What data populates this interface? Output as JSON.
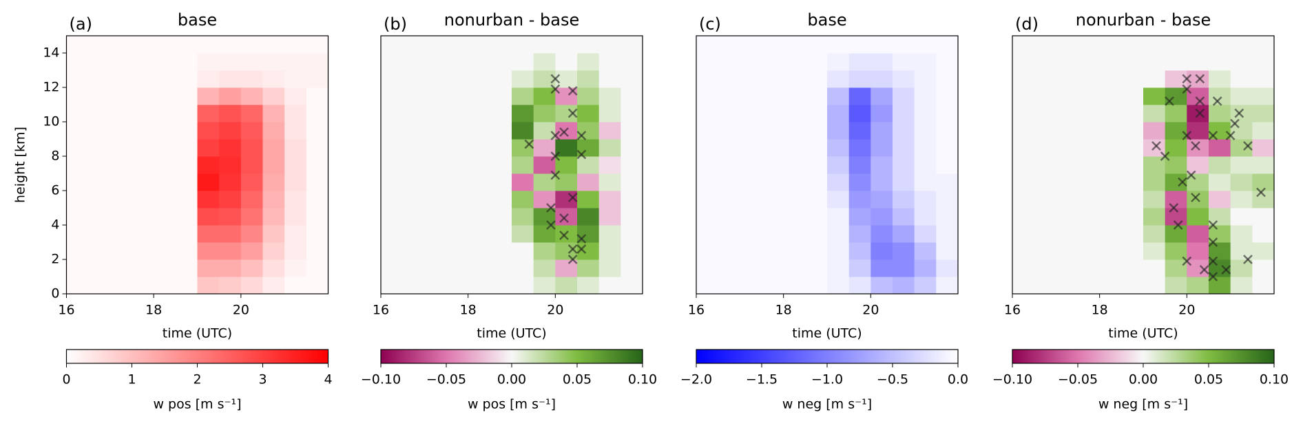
{
  "chart_data": [
    {
      "type": "heatmap",
      "panel_label": "(a)",
      "title": "base",
      "xlabel": "time (UTC)",
      "ylabel": "height [km]",
      "xlim": [
        16,
        22
      ],
      "ylim": [
        0,
        15
      ],
      "xticks": [
        16,
        18,
        20
      ],
      "yticks": [
        0,
        2,
        4,
        6,
        8,
        10,
        12,
        14
      ],
      "xbins": [
        16,
        16.5,
        17,
        17.5,
        18,
        18.5,
        19,
        19.5,
        20,
        20.5,
        21,
        21.5,
        22
      ],
      "ybins": [
        0,
        1,
        2,
        3,
        4,
        5,
        6,
        7,
        8,
        9,
        10,
        11,
        12,
        13,
        14,
        15
      ],
      "z": [
        [
          0.1,
          0.1,
          0.1,
          0.1,
          0.1,
          0.1,
          0.9,
          0.8,
          0.6,
          0.3,
          0.1,
          0.1
        ],
        [
          0.1,
          0.1,
          0.1,
          0.1,
          0.1,
          0.1,
          1.3,
          1.3,
          1.0,
          0.5,
          0.2,
          0.1
        ],
        [
          0.1,
          0.1,
          0.1,
          0.1,
          0.1,
          0.1,
          1.8,
          1.8,
          1.5,
          0.7,
          0.3,
          0.1
        ],
        [
          0.1,
          0.1,
          0.1,
          0.1,
          0.1,
          0.1,
          2.3,
          2.3,
          1.9,
          0.9,
          0.3,
          0.1
        ],
        [
          0.1,
          0.1,
          0.1,
          0.1,
          0.1,
          0.1,
          2.8,
          2.7,
          2.2,
          1.1,
          0.4,
          0.1
        ],
        [
          0.1,
          0.1,
          0.1,
          0.1,
          0.1,
          0.1,
          3.2,
          3.0,
          2.4,
          1.2,
          0.4,
          0.1
        ],
        [
          0.1,
          0.1,
          0.1,
          0.1,
          0.1,
          0.1,
          3.6,
          3.2,
          2.6,
          1.3,
          0.5,
          0.1
        ],
        [
          0.1,
          0.1,
          0.1,
          0.1,
          0.1,
          0.1,
          3.4,
          3.3,
          2.7,
          1.4,
          0.5,
          0.1
        ],
        [
          0.1,
          0.1,
          0.1,
          0.1,
          0.1,
          0.1,
          3.0,
          3.2,
          2.7,
          1.4,
          0.5,
          0.1
        ],
        [
          0.1,
          0.1,
          0.1,
          0.1,
          0.1,
          0.1,
          2.8,
          3.0,
          2.6,
          1.3,
          0.4,
          0.1
        ],
        [
          0.1,
          0.1,
          0.1,
          0.1,
          0.1,
          0.1,
          2.5,
          2.7,
          2.4,
          1.2,
          0.4,
          0.1
        ],
        [
          0.1,
          0.1,
          0.1,
          0.1,
          0.1,
          0.1,
          1.2,
          1.5,
          1.2,
          0.7,
          0.3,
          0.1
        ],
        [
          0.1,
          0.1,
          0.1,
          0.1,
          0.1,
          0.1,
          0.3,
          0.4,
          0.4,
          0.3,
          0.2,
          0.2
        ],
        [
          0.1,
          0.1,
          0.1,
          0.1,
          0.1,
          0.1,
          0.2,
          0.2,
          0.2,
          0.2,
          0.2,
          0.2
        ],
        [
          0.1,
          0.1,
          0.1,
          0.1,
          0.1,
          0.1,
          0.1,
          0.1,
          0.1,
          0.1,
          0.1,
          0.1
        ]
      ],
      "colormap": [
        "#ffffff",
        "#ff0000"
      ],
      "clim": [
        0,
        4
      ],
      "cticks": [
        0,
        1,
        2,
        3,
        4
      ],
      "clabel": "w pos [m s⁻¹]"
    },
    {
      "type": "heatmap",
      "panel_label": "(b)",
      "title": "nonurban - base",
      "xlabel": "time (UTC)",
      "xlim": [
        16,
        22
      ],
      "ylim": [
        0,
        15
      ],
      "xticks": [
        16,
        18,
        20
      ],
      "xbins": [
        16,
        16.5,
        17,
        17.5,
        18,
        18.5,
        19,
        19.5,
        20,
        20.5,
        21,
        21.5,
        22
      ],
      "ybins": [
        0,
        1,
        2,
        3,
        4,
        5,
        6,
        7,
        8,
        9,
        10,
        11,
        12,
        13,
        14,
        15
      ],
      "z": [
        [
          0,
          0,
          0,
          0,
          0,
          0,
          0,
          0.01,
          0.02,
          0.01,
          0,
          0
        ],
        [
          0,
          0,
          0,
          0,
          0,
          0,
          0,
          0.02,
          -0.03,
          0.03,
          0.01,
          0
        ],
        [
          0,
          0,
          0,
          0,
          0,
          0,
          0,
          0.03,
          0.04,
          0.05,
          0.01,
          0
        ],
        [
          0,
          0,
          0,
          0,
          0,
          0,
          0.02,
          0.06,
          0.05,
          0.07,
          0.01,
          0
        ],
        [
          0,
          0,
          0,
          0,
          0,
          0,
          0.03,
          0.07,
          -0.06,
          0.08,
          -0.02,
          0
        ],
        [
          0,
          0,
          0,
          0,
          0,
          0,
          0.04,
          -0.04,
          -0.08,
          0.05,
          -0.02,
          0
        ],
        [
          0,
          0,
          0,
          0,
          0,
          0,
          -0.05,
          0.03,
          0.04,
          -0.03,
          0.01,
          0
        ],
        [
          0,
          0,
          0,
          0,
          0,
          0,
          0.03,
          -0.06,
          0.05,
          0.02,
          -0.01,
          0
        ],
        [
          0,
          0,
          0,
          0,
          0,
          0,
          0.04,
          -0.03,
          0.09,
          0.06,
          0.02,
          0
        ],
        [
          0,
          0,
          0,
          0,
          0,
          0,
          0.08,
          0.02,
          -0.05,
          0.04,
          -0.02,
          0
        ],
        [
          0,
          0,
          0,
          0,
          0,
          0,
          0.07,
          0.04,
          0.03,
          0.05,
          0.01,
          0
        ],
        [
          0,
          0,
          0,
          0,
          0,
          0,
          0.03,
          0.05,
          -0.04,
          0.03,
          0.01,
          0
        ],
        [
          0,
          0,
          0,
          0,
          0,
          0,
          0.01,
          0.02,
          0.01,
          0.02,
          0,
          0
        ],
        [
          0,
          0,
          0,
          0,
          0,
          0,
          0,
          0.01,
          0,
          0.01,
          0,
          0
        ],
        [
          0,
          0,
          0,
          0,
          0,
          0,
          0,
          0,
          0,
          0,
          0,
          0
        ]
      ],
      "markers": {
        "x": [
          20.0,
          20.0,
          20.0,
          19.9,
          19.9,
          20.2,
          20.2,
          20.4,
          20.4,
          20.6,
          20.6,
          20.4,
          20.4,
          20.4,
          20.0,
          20.0,
          20.6,
          20.2,
          19.4,
          20.6
        ],
        "y": [
          9.2,
          8.0,
          6.9,
          5.0,
          4.0,
          4.4,
          3.4,
          2.0,
          2.6,
          3.2,
          2.6,
          5.6,
          10.5,
          11.8,
          12.5,
          11.9,
          9.2,
          9.4,
          8.7,
          8.1
        ]
      },
      "colormap": [
        "#8e0152",
        "#de77ae",
        "#f7f7f7",
        "#7fbc41",
        "#276419"
      ],
      "clim": [
        -0.1,
        0.1
      ],
      "cticks": [
        {
          "value": -0.1,
          "label": "−0.10"
        },
        {
          "value": -0.05,
          "label": "−0.05"
        },
        {
          "value": 0,
          "label": "0.00"
        },
        0.05,
        {
          "value": 0.1,
          "label": "0.10"
        }
      ],
      "clabel": "w pos [m s⁻¹]"
    },
    {
      "type": "heatmap",
      "panel_label": "(c)",
      "title": "base",
      "xlabel": "time (UTC)",
      "xlim": [
        16,
        22
      ],
      "ylim": [
        0,
        15
      ],
      "xticks": [
        16,
        18,
        20
      ],
      "xbins": [
        16,
        16.5,
        17,
        17.5,
        18,
        18.5,
        19,
        19.5,
        20,
        20.5,
        21,
        21.5,
        22
      ],
      "ybins": [
        0,
        1,
        2,
        3,
        4,
        5,
        6,
        7,
        8,
        9,
        10,
        11,
        12,
        13,
        14,
        15
      ],
      "z": [
        [
          -0.05,
          -0.05,
          -0.05,
          -0.05,
          -0.05,
          -0.05,
          -0.1,
          -0.2,
          -0.5,
          -0.6,
          -0.4,
          -0.1
        ],
        [
          -0.05,
          -0.05,
          -0.05,
          -0.05,
          -0.05,
          -0.05,
          -0.1,
          -0.4,
          -0.9,
          -0.9,
          -0.6,
          -0.2
        ],
        [
          -0.05,
          -0.05,
          -0.05,
          -0.05,
          -0.05,
          -0.05,
          -0.1,
          -0.5,
          -1.0,
          -0.9,
          -0.5,
          -0.1
        ],
        [
          -0.05,
          -0.05,
          -0.05,
          -0.05,
          -0.05,
          -0.05,
          -0.1,
          -0.6,
          -0.9,
          -0.7,
          -0.3,
          -0.1
        ],
        [
          -0.05,
          -0.05,
          -0.05,
          -0.05,
          -0.05,
          -0.05,
          -0.1,
          -0.7,
          -0.8,
          -0.5,
          -0.2,
          -0.1
        ],
        [
          -0.05,
          -0.05,
          -0.05,
          -0.05,
          -0.05,
          -0.05,
          -0.2,
          -0.8,
          -0.7,
          -0.4,
          -0.2,
          -0.1
        ],
        [
          -0.05,
          -0.05,
          -0.05,
          -0.05,
          -0.05,
          -0.05,
          -0.3,
          -0.9,
          -0.6,
          -0.3,
          -0.1,
          -0.1
        ],
        [
          -0.05,
          -0.05,
          -0.05,
          -0.05,
          -0.05,
          -0.05,
          -0.4,
          -1.0,
          -0.6,
          -0.3,
          -0.1,
          -0.05
        ],
        [
          -0.05,
          -0.05,
          -0.05,
          -0.05,
          -0.05,
          -0.05,
          -0.5,
          -1.1,
          -0.7,
          -0.3,
          -0.1,
          -0.05
        ],
        [
          -0.05,
          -0.05,
          -0.05,
          -0.05,
          -0.05,
          -0.05,
          -0.6,
          -1.2,
          -0.7,
          -0.3,
          -0.1,
          -0.05
        ],
        [
          -0.05,
          -0.05,
          -0.05,
          -0.05,
          -0.05,
          -0.05,
          -0.6,
          -1.3,
          -0.8,
          -0.3,
          -0.1,
          -0.05
        ],
        [
          -0.05,
          -0.05,
          -0.05,
          -0.05,
          -0.05,
          -0.05,
          -0.5,
          -1.2,
          -0.7,
          -0.3,
          -0.1,
          -0.05
        ],
        [
          -0.05,
          -0.05,
          -0.05,
          -0.05,
          -0.05,
          -0.05,
          -0.2,
          -0.3,
          -0.3,
          -0.2,
          -0.1,
          -0.05
        ],
        [
          -0.05,
          -0.05,
          -0.05,
          -0.05,
          -0.05,
          -0.05,
          -0.1,
          -0.2,
          -0.2,
          -0.1,
          -0.1,
          -0.05
        ],
        [
          -0.05,
          -0.05,
          -0.05,
          -0.05,
          -0.05,
          -0.05,
          -0.05,
          -0.05,
          -0.05,
          -0.05,
          -0.05,
          -0.05
        ]
      ],
      "colormap": [
        "#0000ff",
        "#ffffff"
      ],
      "clim": [
        -2,
        0
      ],
      "cticks": [
        {
          "value": -2,
          "label": "−2.0"
        },
        {
          "value": -1.5,
          "label": "−1.5"
        },
        {
          "value": -1,
          "label": "−1.0"
        },
        {
          "value": -0.5,
          "label": "−0.5"
        },
        {
          "value": 0,
          "label": "0.0"
        }
      ],
      "clabel": "w neg [m s⁻¹]"
    },
    {
      "type": "heatmap",
      "panel_label": "(d)",
      "title": "nonurban - base",
      "xlabel": "time (UTC)",
      "xlim": [
        16,
        22
      ],
      "ylim": [
        0,
        15
      ],
      "xticks": [
        16,
        18,
        20
      ],
      "xbins": [
        16,
        16.5,
        17,
        17.5,
        18,
        18.5,
        19,
        19.5,
        20,
        20.5,
        21,
        21.5,
        22
      ],
      "ybins": [
        0,
        1,
        2,
        3,
        4,
        5,
        6,
        7,
        8,
        9,
        10,
        11,
        12,
        13,
        14,
        15
      ],
      "z": [
        [
          0,
          0,
          0,
          0,
          0,
          0,
          0,
          0.02,
          0.03,
          0.06,
          0.01,
          0
        ],
        [
          0,
          0,
          0,
          0,
          0,
          0,
          0,
          0.03,
          -0.04,
          0.08,
          0.02,
          0
        ],
        [
          0,
          0,
          0,
          0,
          0,
          0,
          0.01,
          0.04,
          -0.05,
          0.07,
          0.01,
          0.01
        ],
        [
          0,
          0,
          0,
          0,
          0,
          0,
          0.02,
          0.06,
          -0.06,
          0.04,
          0.01,
          0
        ],
        [
          0,
          0,
          0,
          0,
          0,
          0,
          0.03,
          -0.07,
          0.05,
          0.02,
          0,
          0
        ],
        [
          0,
          0,
          0,
          0,
          0,
          0,
          0.02,
          -0.06,
          0.04,
          -0.02,
          0.01,
          0.02
        ],
        [
          0,
          0,
          0,
          0,
          0,
          0,
          0.03,
          0.06,
          0.03,
          0.01,
          0.02,
          0.03
        ],
        [
          0,
          0,
          0,
          0,
          0,
          0,
          0.03,
          0.04,
          -0.02,
          0.02,
          0.01,
          0.01
        ],
        [
          0,
          0,
          0,
          0,
          0,
          0,
          -0.02,
          0.05,
          -0.04,
          -0.06,
          0.03,
          -0.02
        ],
        [
          0,
          0,
          0,
          0,
          0,
          0,
          -0.03,
          0.06,
          -0.08,
          0.05,
          0.02,
          0.01
        ],
        [
          0,
          0,
          0,
          0,
          0,
          0,
          0.02,
          0.04,
          -0.09,
          0.03,
          0.02,
          0.02
        ],
        [
          0,
          0,
          0,
          0,
          0,
          0,
          0.05,
          0.07,
          -0.06,
          0.02,
          0.01,
          0.01
        ],
        [
          0,
          0,
          0,
          0,
          0,
          0,
          0,
          -0.02,
          -0.03,
          0.01,
          0,
          0
        ],
        [
          0,
          0,
          0,
          0,
          0,
          0,
          0,
          0,
          0,
          0,
          0,
          0
        ],
        [
          0,
          0,
          0,
          0,
          0,
          0,
          0,
          0,
          0,
          0,
          0,
          0
        ]
      ],
      "markers": {
        "x": [
          20.0,
          20.3,
          20.3,
          20.3,
          20.0,
          19.6,
          20.0,
          20.7,
          21.2,
          21.1,
          20.6,
          20.2,
          19.3,
          19.5,
          21.4,
          21.0,
          19.9,
          20.1,
          19.7,
          19.8,
          20.2,
          20.6,
          20.6,
          20.6,
          20.6,
          20.4,
          20.0,
          20.9,
          21.4,
          21.7
        ],
        "y": [
          12.5,
          12.5,
          11.2,
          10.5,
          9.2,
          11.2,
          11.9,
          11.2,
          10.5,
          9.9,
          9.2,
          8.6,
          8.6,
          8.0,
          8.6,
          9.2,
          6.5,
          6.9,
          5.0,
          4.0,
          5.6,
          4.0,
          3.0,
          1.9,
          1.0,
          1.4,
          1.9,
          1.4,
          2.0,
          5.9
        ]
      },
      "colormap": [
        "#8e0152",
        "#de77ae",
        "#f7f7f7",
        "#7fbc41",
        "#276419"
      ],
      "clim": [
        -0.1,
        0.1
      ],
      "cticks": [
        {
          "value": -0.1,
          "label": "−0.10"
        },
        {
          "value": -0.05,
          "label": "−0.05"
        },
        {
          "value": 0,
          "label": "0.00"
        },
        0.05,
        {
          "value": 0.1,
          "label": "0.10"
        }
      ],
      "clabel": "w neg [m s⁻¹]"
    }
  ]
}
